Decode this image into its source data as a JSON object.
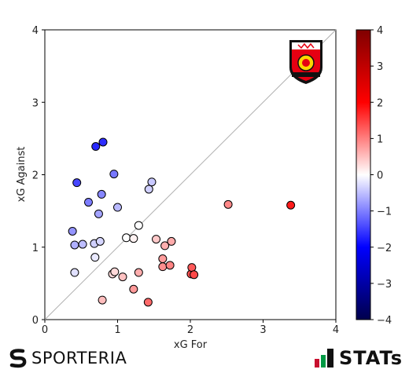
{
  "chart_data": {
    "type": "scatter",
    "xlabel": "xG For",
    "ylabel": "xG Against",
    "xlim": [
      0,
      4
    ],
    "ylim": [
      0,
      4
    ],
    "x_ticks": [
      "0",
      "1",
      "2",
      "3",
      "4"
    ],
    "y_ticks": [
      "0",
      "1",
      "2",
      "3",
      "4"
    ],
    "diagonal_line": true,
    "grid": false,
    "colorbar": {
      "range": [
        -4,
        4
      ],
      "ticks": [
        "-4",
        "-3",
        "-2",
        "-1",
        "0",
        "1",
        "2",
        "3",
        "4"
      ],
      "colormap": "seismic",
      "value_meaning": "xG For minus xG Against"
    },
    "points": [
      {
        "x": 0.7,
        "y": 2.39
      },
      {
        "x": 0.8,
        "y": 2.45
      },
      {
        "x": 0.44,
        "y": 1.89
      },
      {
        "x": 0.95,
        "y": 2.01
      },
      {
        "x": 0.78,
        "y": 1.73
      },
      {
        "x": 0.6,
        "y": 1.62
      },
      {
        "x": 1.0,
        "y": 1.55
      },
      {
        "x": 0.74,
        "y": 1.46
      },
      {
        "x": 1.47,
        "y": 1.9
      },
      {
        "x": 1.43,
        "y": 1.8
      },
      {
        "x": 0.38,
        "y": 1.22
      },
      {
        "x": 0.41,
        "y": 1.03
      },
      {
        "x": 0.52,
        "y": 1.04
      },
      {
        "x": 0.68,
        "y": 1.05
      },
      {
        "x": 0.76,
        "y": 1.08
      },
      {
        "x": 1.12,
        "y": 1.13
      },
      {
        "x": 1.22,
        "y": 1.12
      },
      {
        "x": 1.29,
        "y": 1.3
      },
      {
        "x": 0.69,
        "y": 0.86
      },
      {
        "x": 0.41,
        "y": 0.65
      },
      {
        "x": 0.93,
        "y": 0.63
      },
      {
        "x": 0.96,
        "y": 0.66
      },
      {
        "x": 1.07,
        "y": 0.59
      },
      {
        "x": 1.29,
        "y": 0.65
      },
      {
        "x": 0.79,
        "y": 0.27
      },
      {
        "x": 1.22,
        "y": 0.42
      },
      {
        "x": 1.42,
        "y": 0.24
      },
      {
        "x": 1.53,
        "y": 1.11
      },
      {
        "x": 1.65,
        "y": 1.02
      },
      {
        "x": 1.74,
        "y": 1.08
      },
      {
        "x": 1.62,
        "y": 0.84
      },
      {
        "x": 1.62,
        "y": 0.73
      },
      {
        "x": 1.72,
        "y": 0.75
      },
      {
        "x": 2.01,
        "y": 0.63
      },
      {
        "x": 2.02,
        "y": 0.72
      },
      {
        "x": 2.05,
        "y": 0.62
      },
      {
        "x": 2.52,
        "y": 1.59
      },
      {
        "x": 3.38,
        "y": 1.58
      }
    ]
  },
  "branding": {
    "left_logo_text": "SPORTERIA",
    "right_logo_text": "STATs",
    "team_crest": "club-crest-icon"
  }
}
